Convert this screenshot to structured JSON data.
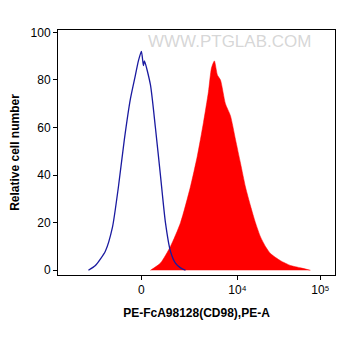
{
  "chart_data": {
    "type": "histogram_overlay",
    "x_label": "PE-FcA98128(CD98),PE-A",
    "y_label": "Relative cell number",
    "annotations": [
      "WWW.PTGLAB.COM"
    ],
    "xlim": [
      -7000,
      150000
    ],
    "xticks": [
      0,
      {
        "value": 10000,
        "label": "10⁴"
      },
      {
        "value": 100000,
        "label": "10⁵"
      }
    ],
    "ylim": [
      -2,
      101
    ],
    "yticks": [
      0,
      20,
      40,
      60,
      80,
      100
    ],
    "grid": false,
    "series": [
      {
        "type": "line",
        "color": "#1a1aa0",
        "x": [
          -2880,
          -2310,
          -1645,
          -1250,
          -955,
          -686,
          -434,
          -234,
          -117,
          0,
          78,
          117,
          353,
          557,
          773,
          1004,
          1252,
          1526,
          1834,
          2170
        ],
        "values": [
          0,
          2,
          8,
          18,
          35,
          55,
          72,
          82,
          88,
          92,
          86,
          88,
          78,
          60,
          40,
          20,
          8,
          3,
          1,
          0
        ]
      },
      {
        "type": "area",
        "color": "#ff0000",
        "x": [
          353,
          773,
          1252,
          1834,
          2540,
          3150,
          3780,
          4380,
          4780,
          5200,
          5680,
          6190,
          7120,
          8200,
          9450,
          10880,
          12500,
          14400,
          16500,
          19000,
          21800,
          25100,
          33100,
          43700,
          57700,
          76000
        ],
        "values": [
          0,
          3,
          10,
          20,
          35,
          48,
          62,
          75,
          85,
          88,
          82,
          80,
          70,
          65,
          55,
          45,
          35,
          27,
          20,
          14,
          10,
          7,
          4,
          2,
          1,
          0
        ]
      }
    ]
  }
}
